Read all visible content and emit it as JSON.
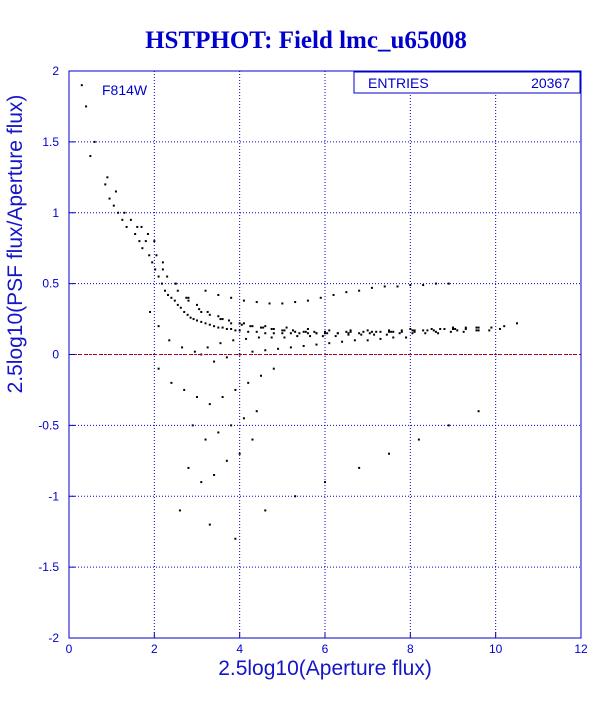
{
  "colors": {
    "axis": "#0000cc",
    "grid": "#0000cc",
    "text": "#1515c8",
    "points": "#000000",
    "reference_line": "#cc0000",
    "background": "#ffffff"
  },
  "chart_data": {
    "type": "scatter",
    "title": "HSTPHOT: Field lmc_u65008",
    "xlabel": "2.5log10(Aperture flux)",
    "ylabel": "2.5log10(PSF flux/Aperture flux)",
    "xlim": [
      0,
      12
    ],
    "ylim": [
      -2,
      2
    ],
    "grid": true,
    "x_ticks": [
      0,
      2,
      4,
      6,
      8,
      10,
      12
    ],
    "x_tick_labels": [
      "0",
      "2",
      "4",
      "6",
      "8",
      "10",
      "12"
    ],
    "y_ticks": [
      -2,
      -1.5,
      -1,
      -0.5,
      0,
      0.5,
      1,
      1.5,
      2
    ],
    "y_tick_labels": [
      "-2",
      "-1.5",
      "-1",
      "-0.5",
      "0",
      "0.5",
      "1",
      "1.5",
      "2"
    ],
    "reference_line": {
      "y": 0,
      "style": "dashed"
    },
    "annotation": "F814W",
    "stats_box": {
      "label": "ENTRIES",
      "value": "20367"
    },
    "series": [
      {
        "points_sampled": true,
        "x": [
          0.3,
          0.4,
          0.6,
          0.85,
          0.95,
          1.05,
          1.15,
          1.25,
          1.35,
          1.45,
          1.55,
          1.65,
          1.72,
          1.8,
          1.88,
          1.95,
          2.02,
          2.1,
          2.18,
          2.25,
          2.32,
          2.4,
          2.48,
          2.55,
          2.62,
          2.7,
          2.78,
          2.85,
          2.92,
          3.0,
          3.1,
          3.2,
          3.3,
          3.4,
          3.5,
          3.6,
          3.7,
          3.8,
          3.9,
          4.0,
          4.2,
          4.4,
          4.6,
          4.8,
          5.0,
          5.2,
          5.4,
          5.6,
          5.8,
          6.0,
          6.3,
          6.6,
          6.9,
          7.2,
          7.5,
          7.8,
          8.1,
          8.4,
          8.7,
          9.0,
          9.3,
          9.6,
          9.9,
          10.2,
          10.5,
          0.5,
          0.9,
          1.1,
          1.3,
          1.6,
          1.85,
          2.05,
          2.3,
          2.55,
          2.8,
          3.05,
          3.3,
          3.55,
          3.8,
          4.05,
          4.3,
          4.55,
          4.8,
          5.05,
          5.3,
          5.55,
          5.8,
          6.05,
          6.3,
          6.55,
          6.8,
          7.05,
          7.3,
          7.55,
          7.8,
          8.05,
          8.3,
          8.55,
          8.8,
          9.05,
          9.3,
          9.55,
          1.7,
          2.0,
          2.2,
          2.5,
          2.75,
          3.0,
          3.25,
          3.5,
          3.75,
          4.0,
          4.25,
          4.5,
          4.75,
          5.0,
          5.25,
          5.5,
          5.75,
          6.0,
          6.5,
          7.0,
          7.5,
          8.0,
          8.5,
          9.0,
          3.2,
          3.5,
          3.8,
          4.1,
          4.4,
          4.7,
          5.0,
          5.3,
          5.6,
          5.9,
          6.2,
          6.5,
          6.8,
          7.1,
          7.4,
          7.7,
          8.0,
          8.3,
          8.6,
          8.9,
          3.1,
          3.4,
          3.7,
          4.0,
          4.3,
          4.6,
          4.9,
          5.2,
          5.5,
          5.8,
          6.1,
          6.4,
          6.7,
          7.0,
          7.3,
          7.6,
          7.9,
          2.1,
          2.4,
          2.7,
          3.0,
          3.3,
          3.6,
          3.9,
          4.2,
          4.5,
          4.8,
          2.9,
          3.2,
          3.5,
          3.8,
          4.1,
          4.4,
          2.8,
          3.1,
          3.4,
          3.7,
          4.0,
          4.3,
          2.6,
          3.3,
          3.9,
          4.6,
          5.3,
          6.0,
          6.8,
          7.5,
          8.2,
          8.9,
          9.6,
          2.2,
          2.5,
          2.8,
          3.1,
          3.6,
          4.1,
          4.6,
          5.1,
          5.6,
          6.1,
          6.6,
          7.1,
          7.6,
          8.1,
          8.6,
          9.1,
          9.6,
          10.1,
          1.9,
          2.1,
          2.35,
          2.65,
          2.95,
          3.25,
          3.55,
          3.85,
          4.15,
          4.45,
          4.75,
          5.05,
          5.35,
          5.65,
          5.95,
          6.25,
          6.55,
          6.85,
          7.15,
          7.45,
          7.75,
          8.05,
          8.35,
          8.65,
          8.95,
          9.25,
          9.55,
          9.85
        ],
        "y": [
          1.9,
          1.75,
          1.5,
          1.2,
          1.1,
          1.05,
          1.0,
          0.95,
          0.9,
          0.95,
          0.85,
          0.8,
          0.75,
          0.8,
          0.7,
          0.65,
          0.6,
          0.55,
          0.5,
          0.45,
          0.42,
          0.4,
          0.38,
          0.35,
          0.33,
          0.3,
          0.28,
          0.26,
          0.25,
          0.24,
          0.23,
          0.22,
          0.21,
          0.2,
          0.19,
          0.19,
          0.18,
          0.18,
          0.17,
          0.17,
          0.16,
          0.16,
          0.15,
          0.15,
          0.15,
          0.15,
          0.15,
          0.15,
          0.15,
          0.15,
          0.15,
          0.16,
          0.16,
          0.16,
          0.16,
          0.17,
          0.17,
          0.17,
          0.18,
          0.18,
          0.18,
          0.19,
          0.19,
          0.2,
          0.22,
          1.4,
          1.25,
          1.15,
          1.0,
          0.9,
          0.85,
          0.7,
          0.55,
          0.45,
          0.38,
          0.32,
          0.28,
          0.25,
          0.22,
          0.21,
          0.2,
          0.19,
          0.18,
          0.17,
          0.16,
          0.16,
          0.15,
          0.15,
          0.15,
          0.15,
          0.15,
          0.15,
          0.16,
          0.16,
          0.16,
          0.17,
          0.17,
          0.17,
          0.18,
          0.18,
          0.19,
          0.19,
          0.9,
          0.8,
          0.65,
          0.5,
          0.4,
          0.35,
          0.3,
          0.27,
          0.24,
          0.22,
          0.2,
          0.19,
          0.18,
          0.17,
          0.17,
          0.16,
          0.16,
          0.16,
          0.16,
          0.17,
          0.17,
          0.18,
          0.18,
          0.19,
          0.45,
          0.42,
          0.4,
          0.38,
          0.37,
          0.36,
          0.36,
          0.37,
          0.38,
          0.4,
          0.42,
          0.44,
          0.45,
          0.47,
          0.48,
          0.48,
          0.49,
          0.49,
          0.5,
          0.5,
          0.0,
          -0.05,
          -0.02,
          0.0,
          0.02,
          0.03,
          0.04,
          0.05,
          0.06,
          0.07,
          0.08,
          0.09,
          0.1,
          0.1,
          0.11,
          0.12,
          0.12,
          -0.1,
          -0.2,
          -0.25,
          -0.3,
          -0.35,
          -0.3,
          -0.25,
          -0.2,
          -0.15,
          -0.1,
          -0.5,
          -0.6,
          -0.55,
          -0.5,
          -0.45,
          -0.4,
          -0.8,
          -0.9,
          -0.85,
          -0.75,
          -0.7,
          -0.6,
          -1.1,
          -1.2,
          -1.3,
          -1.1,
          -1.0,
          -0.9,
          -0.8,
          -0.7,
          -0.6,
          -0.5,
          -0.4,
          0.6,
          0.5,
          0.4,
          0.3,
          0.25,
          0.22,
          0.2,
          0.19,
          0.18,
          0.17,
          0.17,
          0.16,
          0.16,
          0.16,
          0.16,
          0.17,
          0.17,
          0.18,
          0.3,
          0.2,
          0.1,
          0.05,
          0.02,
          0.05,
          0.08,
          0.1,
          0.11,
          0.12,
          0.12,
          0.12,
          0.13,
          0.13,
          0.13,
          0.13,
          0.14,
          0.14,
          0.14,
          0.14,
          0.15,
          0.15,
          0.15,
          0.15,
          0.16,
          0.16,
          0.17,
          0.17
        ]
      }
    ]
  }
}
